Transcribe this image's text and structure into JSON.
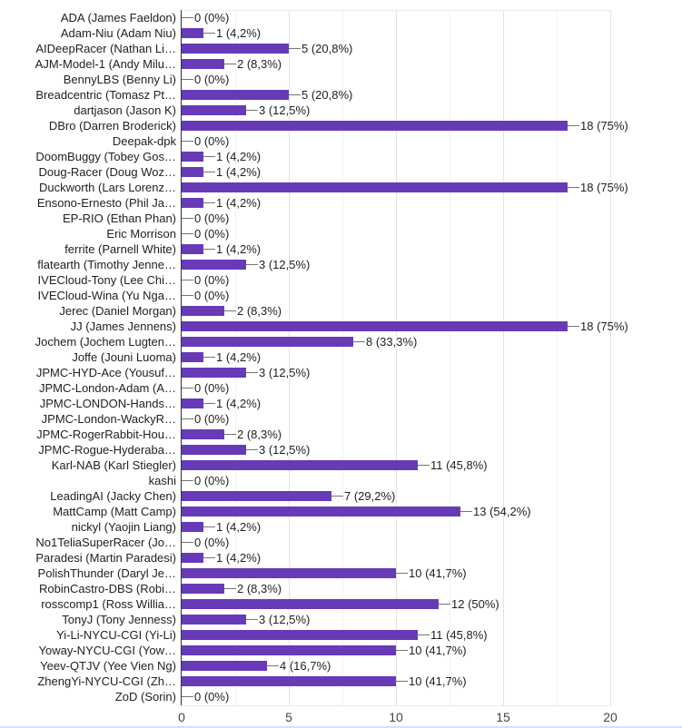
{
  "page": {
    "background": "#ffffff",
    "bottom_divider_color": "#d2e3fc"
  },
  "chart_data": {
    "type": "bar",
    "orientation": "horizontal",
    "title": "",
    "xlabel": "",
    "ylabel": "",
    "legend": "none",
    "grid": true,
    "xlim": [
      0,
      20.08
    ],
    "xticks": [
      0,
      5,
      10,
      15,
      20
    ],
    "bar_color": "#673ab7",
    "axis_color": "#333333",
    "callout_line_color": "#757575",
    "categories": [
      "ADA (James Faeldon)",
      "Adam-Niu (Adam Niu)",
      "AIDeepRacer (Nathan Li…",
      "AJM-Model-1 (Andy Milu…",
      "BennyLBS (Benny Li)",
      "Breadcentric (Tomasz Pt…",
      "dartjason (Jason K)",
      "DBro (Darren Broderick)",
      "Deepak-dpk",
      "DoomBuggy (Tobey Gos…",
      "Doug-Racer (Doug Woz…",
      "Duckworth (Lars Lorenz…",
      "Ensono-Ernesto (Phil Ja…",
      "EP-RIO (Ethan Phan)",
      "Eric Morrison",
      "ferrite (Parnell White)",
      "flatearth (Timothy Jenne…",
      "IVECloud-Tony (Lee Chi…",
      "IVECloud-Wina (Yu Nga…",
      "Jerec (Daniel Morgan)",
      "JJ (James Jennens)",
      "Jochem (Jochem Lugten…",
      "Joffe (Jouni Luoma)",
      "JPMC-HYD-Ace (Yousuf…",
      "JPMC-London-Adam (A…",
      "JPMC-LONDON-Hands…",
      "JPMC-London-WackyR…",
      "JPMC-RogerRabbit-Hou…",
      "JPMC-Rogue-Hyderaba…",
      "Karl-NAB (Karl Stiegler)",
      "kashi",
      "LeadingAI (Jacky Chen)",
      "MattCamp (Matt Camp)",
      "nickyl (Yaojin Liang)",
      "No1TeliaSuperRacer (Jo…",
      "Paradesi (Martin Paradesi)",
      "PolishThunder (Daryl Je…",
      "RobinCastro-DBS (Robi…",
      "rosscomp1 (Ross Willia…",
      "TonyJ (Tony Jenness)",
      "Yi-Li-NYCU-CGI (Yi-Li)",
      "Yoway-NYCU-CGI (Yow…",
      "Yeev-QTJV (Yee Vien Ng)",
      "ZhengYi-NYCU-CGI (Zh…",
      "ZoD (Sorin)"
    ],
    "values": [
      0,
      1,
      5,
      2,
      0,
      5,
      3,
      18,
      0,
      1,
      1,
      18,
      1,
      0,
      0,
      1,
      3,
      0,
      0,
      2,
      18,
      8,
      1,
      3,
      0,
      1,
      0,
      2,
      3,
      11,
      0,
      7,
      13,
      1,
      0,
      1,
      10,
      2,
      12,
      3,
      11,
      10,
      4,
      10,
      0
    ],
    "value_labels": [
      "0 (0%)",
      "1 (4,2%)",
      "5 (20,8%)",
      "2 (8,3%)",
      "0 (0%)",
      "5 (20,8%)",
      "3 (12,5%)",
      "18 (75%)",
      "0 (0%)",
      "1 (4,2%)",
      "1 (4,2%)",
      "18 (75%)",
      "1 (4,2%)",
      "0 (0%)",
      "0 (0%)",
      "1 (4,2%)",
      "3 (12,5%)",
      "0 (0%)",
      "0 (0%)",
      "2 (8,3%)",
      "18 (75%)",
      "8 (33,3%)",
      "1 (4,2%)",
      "3 (12,5%)",
      "0 (0%)",
      "1 (4,2%)",
      "0 (0%)",
      "2 (8,3%)",
      "3 (12,5%)",
      "11 (45,8%)",
      "0 (0%)",
      "7 (29,2%)",
      "13 (54,2%)",
      "1 (4,2%)",
      "0 (0%)",
      "1 (4,2%)",
      "10 (41,7%)",
      "2 (8,3%)",
      "12 (50%)",
      "3 (12,5%)",
      "11 (45,8%)",
      "10 (41,7%)",
      "4 (16,7%)",
      "10 (41,7%)",
      "0 (0%)"
    ]
  }
}
